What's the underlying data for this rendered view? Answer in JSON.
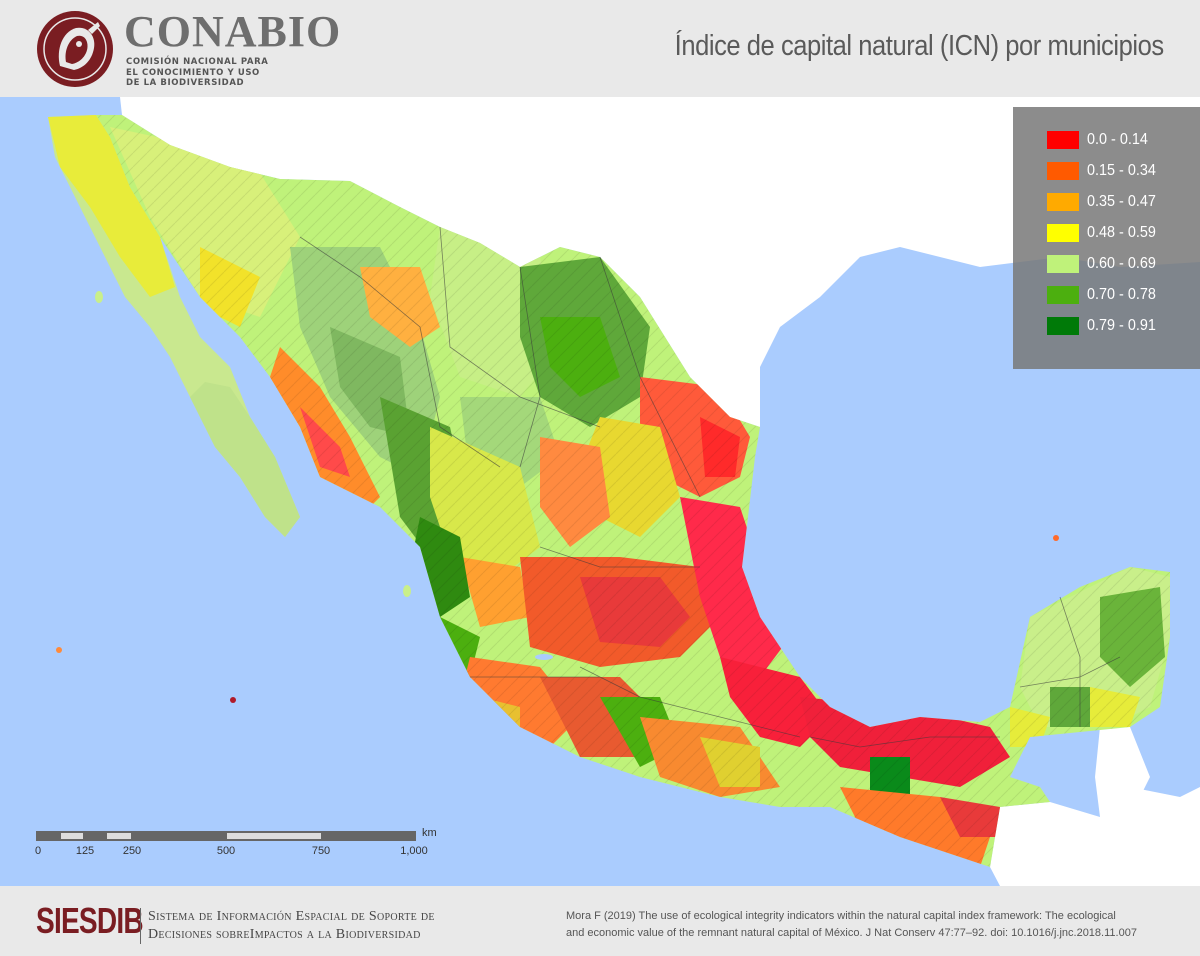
{
  "header": {
    "logo_name": "CONABIO",
    "logo_sub_line1": "COMISIÓN NACIONAL PARA",
    "logo_sub_line2": "EL CONOCIMIENTO Y USO",
    "logo_sub_line3": "DE LA BIODIVERSIDAD",
    "title": "Índice de capital natural (ICN) por municipios"
  },
  "colors": {
    "brand": "#7a1d22",
    "ocean": "#aaccfe",
    "neighbor_land": "#ffffff"
  },
  "legend": {
    "items": [
      {
        "label": "0.0 - 0.14",
        "color": "#ff0000"
      },
      {
        "label": "0.15 - 0.34",
        "color": "#ff5a00"
      },
      {
        "label": "0.35 - 0.47",
        "color": "#ffaa00"
      },
      {
        "label": "0.48 - 0.59",
        "color": "#ffff00"
      },
      {
        "label": "0.60 - 0.69",
        "color": "#bff27a"
      },
      {
        "label": "0.70 - 0.78",
        "color": "#4caf0f"
      },
      {
        "label": "0.79 - 0.91",
        "color": "#007a08"
      }
    ]
  },
  "scalebar": {
    "unit": "km",
    "ticks": [
      "0",
      "125",
      "250",
      "500",
      "750",
      "1,000"
    ]
  },
  "footer": {
    "acronym": "SIESDIB",
    "full_name_line1": "Sistema de Información Espacial de Soporte de",
    "full_name_line2": "Decisiones sobreImpactos a la Biodiversidad",
    "citation_line1": "Mora F (2019) The use of ecological integrity indicators within the natural capital index framework: The ecological",
    "citation_line2": "and economic value of the remnant natural capital of México. J Nat Conserv 47:77–92. doi: 10.1016/j.jnc.2018.11.007"
  }
}
